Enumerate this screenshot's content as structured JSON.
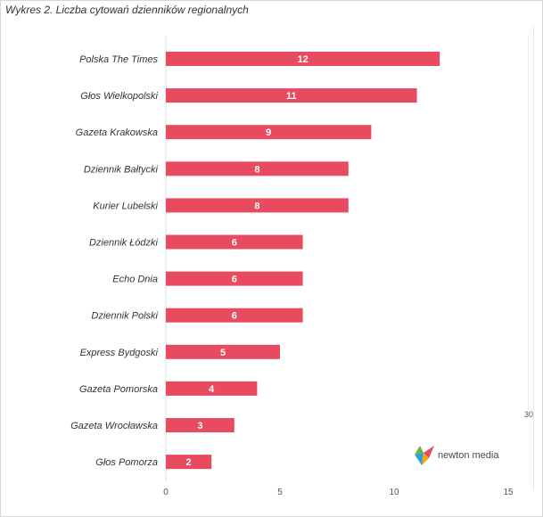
{
  "title": "Wykres 2. Liczba cytowań dzienników regionalnych",
  "side_tick": "30",
  "brand": {
    "name": "newton media"
  },
  "colors": {
    "bar": "#e84b5f",
    "axis": "#dddddd",
    "text": "#333333"
  },
  "chart_data": {
    "type": "bar",
    "orientation": "horizontal",
    "title": "Wykres 2. Liczba cytowań dzienników regionalnych",
    "categories": [
      "Polska The Times",
      "Głos Wielkopolski",
      "Gazeta Krakowska",
      "Dziennik Bałtycki",
      "Kurier Lubelski",
      "Dziennik Łódzki",
      "Echo Dnia",
      "Dziennik Polski",
      "Express Bydgoski",
      "Gazeta Pomorska",
      "Gazeta Wrocławska",
      "Głos Pomorza"
    ],
    "values": [
      12,
      11,
      9,
      8,
      8,
      6,
      6,
      6,
      5,
      4,
      3,
      2
    ],
    "xlim": [
      0,
      15
    ],
    "xticks": [
      0,
      5,
      10,
      15
    ],
    "grid": false,
    "data_labels": true
  }
}
